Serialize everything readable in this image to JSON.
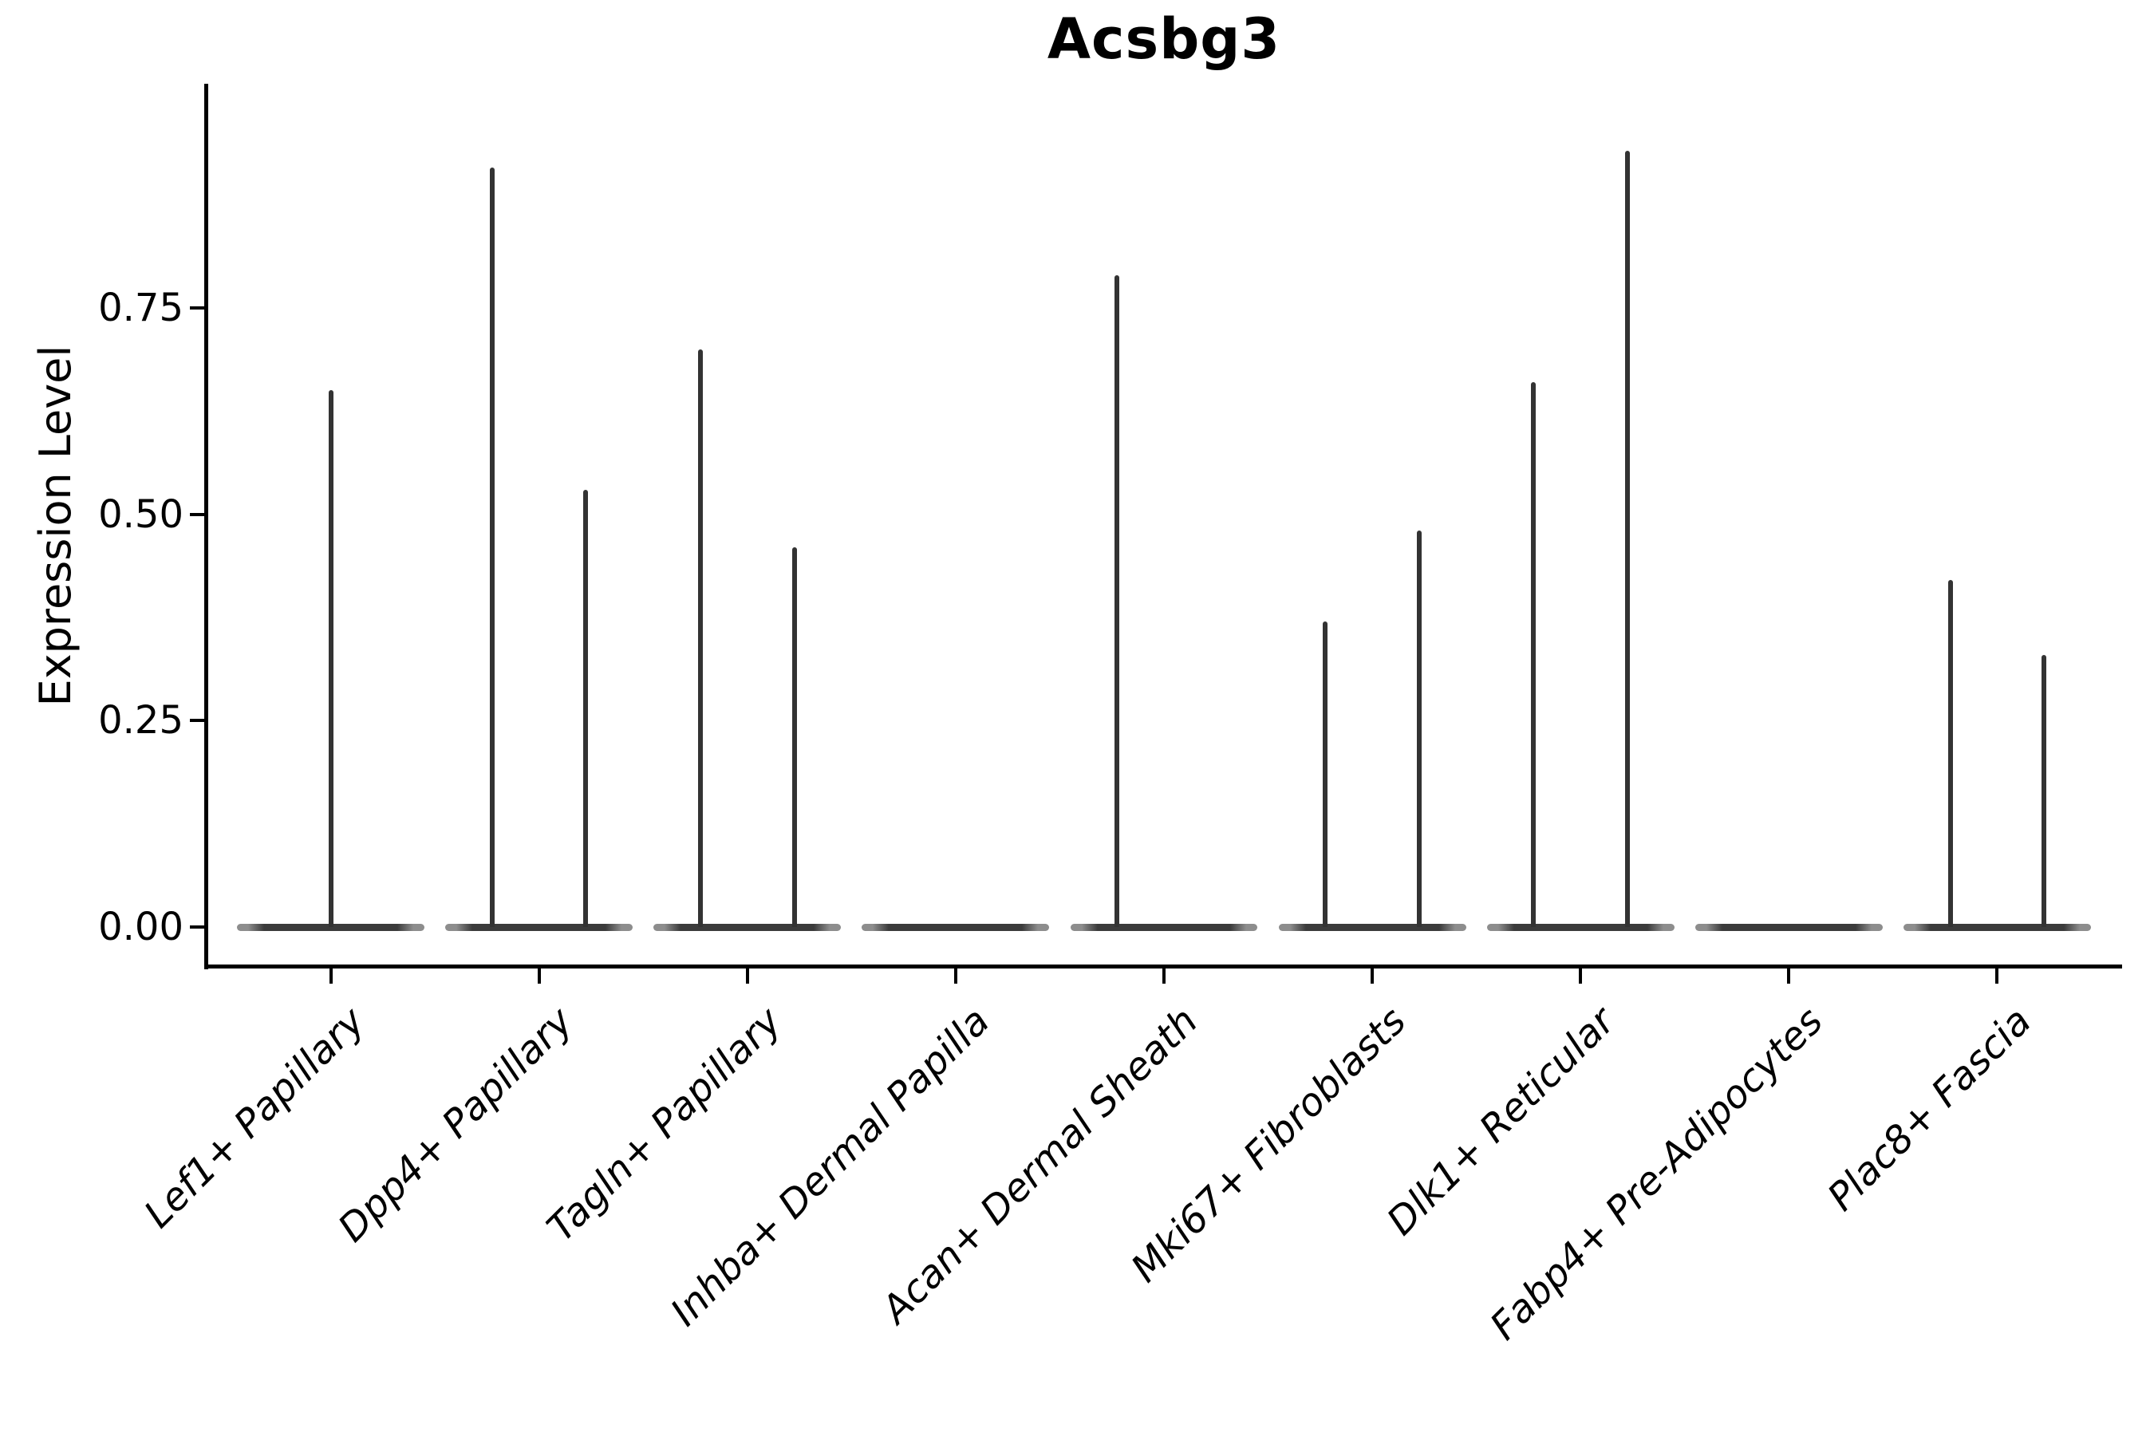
{
  "chart_data": {
    "type": "violin",
    "title": "Acsbg3",
    "xlabel": "",
    "ylabel": "Expression Level",
    "ylim": [
      0,
      1.02
    ],
    "grid": false,
    "legend": "none",
    "y_ticks": [
      {
        "value": 0.0,
        "label": "0.00"
      },
      {
        "value": 0.25,
        "label": "0.25"
      },
      {
        "value": 0.5,
        "label": "0.50"
      },
      {
        "value": 0.75,
        "label": "0.75"
      }
    ],
    "categories": [
      "Lef1+ Papillary",
      "Dpp4+ Papillary",
      "Tagln+ Papillary",
      "Inhba+ Dermal Papilla",
      "Acan+ Dermal Sheath",
      "Mki67+ Fibroblasts",
      "Dlk1+ Reticular",
      "Fabp4+ Pre-Adipocytes",
      "Plac8+ Fascia"
    ],
    "violins": [
      {
        "category": "Lef1+ Papillary",
        "baseline_value": 0,
        "spikes": [
          {
            "position": "center",
            "max": 0.65
          }
        ]
      },
      {
        "category": "Dpp4+ Papillary",
        "baseline_value": 0,
        "spikes": [
          {
            "position": "left",
            "max": 0.92
          },
          {
            "position": "right",
            "max": 0.53
          }
        ]
      },
      {
        "category": "Tagln+ Papillary",
        "baseline_value": 0,
        "spikes": [
          {
            "position": "left",
            "max": 0.7
          },
          {
            "position": "right",
            "max": 0.46
          }
        ]
      },
      {
        "category": "Inhba+ Dermal Papilla",
        "baseline_value": 0,
        "spikes": []
      },
      {
        "category": "Acan+ Dermal Sheath",
        "baseline_value": 0,
        "spikes": [
          {
            "position": "left",
            "max": 0.79
          }
        ]
      },
      {
        "category": "Mki67+ Fibroblasts",
        "baseline_value": 0,
        "spikes": [
          {
            "position": "left",
            "max": 0.37
          },
          {
            "position": "right",
            "max": 0.48
          }
        ]
      },
      {
        "category": "Dlk1+ Reticular",
        "baseline_value": 0,
        "spikes": [
          {
            "position": "left",
            "max": 0.66
          },
          {
            "position": "right",
            "max": 0.94
          }
        ]
      },
      {
        "category": "Fabp4+ Pre-Adipocytes",
        "baseline_value": 0,
        "spikes": []
      },
      {
        "category": "Plac8+ Fascia",
        "baseline_value": 0,
        "spikes": [
          {
            "position": "left",
            "max": 0.42
          },
          {
            "position": "right",
            "max": 0.33
          }
        ]
      }
    ],
    "colors": {
      "violin_fill": "#3b3b3b",
      "violin_edge": "#8d8d8d",
      "spike": "#333333",
      "axis": "#000000",
      "text": "#000000"
    }
  }
}
